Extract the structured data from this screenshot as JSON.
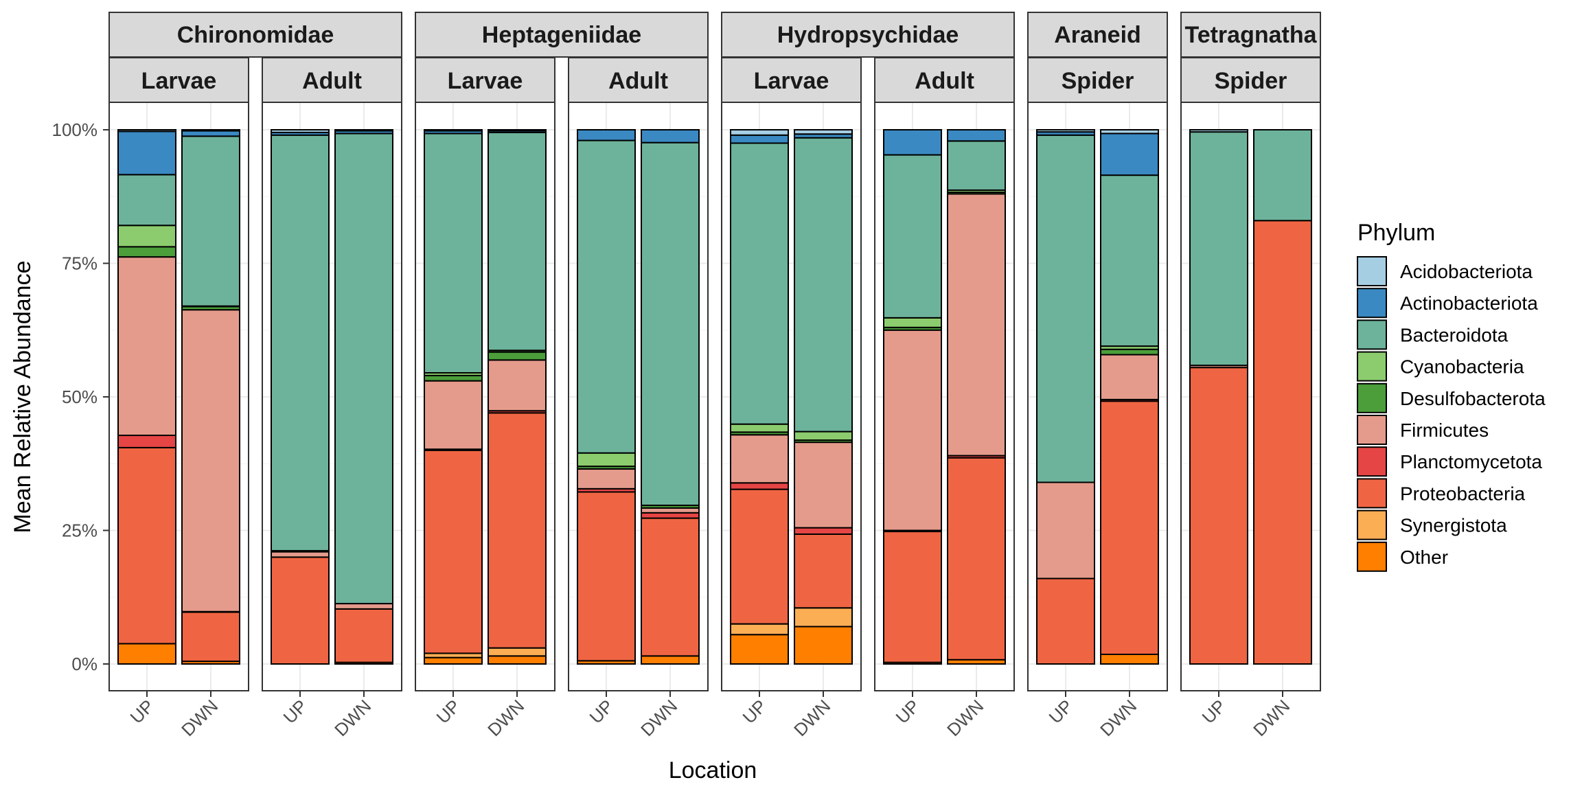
{
  "chart_data": {
    "type": "bar",
    "stacked": true,
    "xlabel": "Location",
    "ylabel": "Mean Relative Abundance",
    "ylim": [
      0,
      100
    ],
    "y_ticks": [
      "0%",
      "25%",
      "50%",
      "75%",
      "100%"
    ],
    "y_tick_values": [
      0,
      25,
      50,
      75,
      100
    ],
    "legend": {
      "title": "Phylum",
      "placement": "right",
      "entries": [
        "Acidobacteriota",
        "Actinobacteriota",
        "Bacteroidota",
        "Cyanobacteria",
        "Desulfobacterota",
        "Firmicutes",
        "Planctomycetota",
        "Proteobacteria",
        "Synergistota",
        "Other"
      ]
    },
    "colors": {
      "Acidobacteriota": "#a6cee3",
      "Actinobacteriota": "#3a89c2",
      "Bacteroidota": "#6db39b",
      "Cyanobacteria": "#8ccc6e",
      "Desulfobacterota": "#4b9e3a",
      "Firmicutes": "#e59b8c",
      "Planctomycetota": "#e64545",
      "Proteobacteria": "#ef6543",
      "Synergistota": "#fcae55",
      "Other": "#ff7f00"
    },
    "stack_order_bottom_to_top": [
      "Other",
      "Synergistota",
      "Proteobacteria",
      "Planctomycetota",
      "Firmicutes",
      "Desulfobacterota",
      "Cyanobacteria",
      "Bacteroidota",
      "Actinobacteriota",
      "Acidobacteriota"
    ],
    "groups": [
      {
        "taxon": "Chironomidae",
        "taxon_span": 2,
        "stages": [
          {
            "stage": "Larvae",
            "bars": [
              {
                "location": "UP",
                "values": {
                  "Other": 3.8,
                  "Synergistota": 0,
                  "Proteobacteria": 36.7,
                  "Planctomycetota": 2.3,
                  "Firmicutes": 33.4,
                  "Desulfobacterota": 1.9,
                  "Cyanobacteria": 4.0,
                  "Bacteroidota": 9.5,
                  "Actinobacteriota": 8.1,
                  "Acidobacteriota": 0.3
                }
              },
              {
                "location": "DWN",
                "values": {
                  "Other": 0.5,
                  "Synergistota": 0,
                  "Proteobacteria": 9.2,
                  "Planctomycetota": 0.1,
                  "Firmicutes": 56.5,
                  "Desulfobacterota": 0.6,
                  "Cyanobacteria": 0.1,
                  "Bacteroidota": 31.8,
                  "Actinobacteriota": 1.0,
                  "Acidobacteriota": 0.2
                }
              }
            ]
          },
          {
            "stage": "Adult",
            "bars": [
              {
                "location": "UP",
                "values": {
                  "Other": 0,
                  "Synergistota": 0,
                  "Proteobacteria": 20.0,
                  "Planctomycetota": 0,
                  "Firmicutes": 1.0,
                  "Desulfobacterota": 0.2,
                  "Cyanobacteria": 0,
                  "Bacteroidota": 77.8,
                  "Actinobacteriota": 0.5,
                  "Acidobacteriota": 0.5
                }
              },
              {
                "location": "DWN",
                "values": {
                  "Other": 0.3,
                  "Synergistota": 0,
                  "Proteobacteria": 10.0,
                  "Planctomycetota": 0,
                  "Firmicutes": 1.0,
                  "Desulfobacterota": 0,
                  "Cyanobacteria": 0,
                  "Bacteroidota": 88.0,
                  "Actinobacteriota": 0.5,
                  "Acidobacteriota": 0.2
                }
              }
            ]
          }
        ]
      },
      {
        "taxon": "Heptageniidae",
        "taxon_span": 2,
        "stages": [
          {
            "stage": "Larvae",
            "bars": [
              {
                "location": "UP",
                "values": {
                  "Other": 1.2,
                  "Synergistota": 0.8,
                  "Proteobacteria": 38.0,
                  "Planctomycetota": 0.2,
                  "Firmicutes": 12.8,
                  "Desulfobacterota": 1.0,
                  "Cyanobacteria": 0.5,
                  "Bacteroidota": 44.8,
                  "Actinobacteriota": 0.5,
                  "Acidobacteriota": 0.2
                }
              },
              {
                "location": "DWN",
                "values": {
                  "Other": 1.5,
                  "Synergistota": 1.5,
                  "Proteobacteria": 44.0,
                  "Planctomycetota": 0.4,
                  "Firmicutes": 9.5,
                  "Desulfobacterota": 1.5,
                  "Cyanobacteria": 0.3,
                  "Bacteroidota": 40.8,
                  "Actinobacteriota": 0.3,
                  "Acidobacteriota": 0.2
                }
              }
            ]
          },
          {
            "stage": "Adult",
            "bars": [
              {
                "location": "UP",
                "values": {
                  "Other": 0.6,
                  "Synergistota": 0,
                  "Proteobacteria": 31.6,
                  "Planctomycetota": 0.6,
                  "Firmicutes": 3.7,
                  "Desulfobacterota": 0.5,
                  "Cyanobacteria": 2.5,
                  "Bacteroidota": 58.5,
                  "Actinobacteriota": 2.0,
                  "Acidobacteriota": 0
                }
              },
              {
                "location": "DWN",
                "values": {
                  "Other": 1.5,
                  "Synergistota": 0,
                  "Proteobacteria": 25.8,
                  "Planctomycetota": 1.0,
                  "Firmicutes": 0.9,
                  "Desulfobacterota": 0.5,
                  "Cyanobacteria": 0,
                  "Bacteroidota": 67.9,
                  "Actinobacteriota": 2.4,
                  "Acidobacteriota": 0
                }
              }
            ]
          }
        ]
      },
      {
        "taxon": "Hydropsychidae",
        "taxon_span": 2,
        "stages": [
          {
            "stage": "Larvae",
            "bars": [
              {
                "location": "UP",
                "values": {
                  "Other": 5.5,
                  "Synergistota": 2.0,
                  "Proteobacteria": 25.2,
                  "Planctomycetota": 1.2,
                  "Firmicutes": 9.0,
                  "Desulfobacterota": 0.5,
                  "Cyanobacteria": 1.5,
                  "Bacteroidota": 52.6,
                  "Actinobacteriota": 1.5,
                  "Acidobacteriota": 1.0
                }
              },
              {
                "location": "DWN",
                "values": {
                  "Other": 7.0,
                  "Synergistota": 3.5,
                  "Proteobacteria": 13.8,
                  "Planctomycetota": 1.2,
                  "Firmicutes": 16.0,
                  "Desulfobacterota": 0.4,
                  "Cyanobacteria": 1.6,
                  "Bacteroidota": 55.0,
                  "Actinobacteriota": 0.7,
                  "Acidobacteriota": 0.8
                }
              }
            ]
          },
          {
            "stage": "Adult",
            "bars": [
              {
                "location": "UP",
                "values": {
                  "Other": 0.3,
                  "Synergistota": 0,
                  "Proteobacteria": 24.5,
                  "Planctomycetota": 0.2,
                  "Firmicutes": 37.5,
                  "Desulfobacterota": 0.5,
                  "Cyanobacteria": 1.8,
                  "Bacteroidota": 30.5,
                  "Actinobacteriota": 4.7,
                  "Acidobacteriota": 0
                }
              },
              {
                "location": "DWN",
                "values": {
                  "Other": 0.8,
                  "Synergistota": 0,
                  "Proteobacteria": 37.8,
                  "Planctomycetota": 0.4,
                  "Firmicutes": 49.0,
                  "Desulfobacterota": 0.3,
                  "Cyanobacteria": 0.4,
                  "Bacteroidota": 9.2,
                  "Actinobacteriota": 2.1,
                  "Acidobacteriota": 0
                }
              }
            ]
          }
        ]
      },
      {
        "taxon": "Araneid",
        "taxon_span": 1,
        "stages": [
          {
            "stage": "Spider",
            "bars": [
              {
                "location": "UP",
                "values": {
                  "Other": 0,
                  "Synergistota": 0,
                  "Proteobacteria": 16.0,
                  "Planctomycetota": 0,
                  "Firmicutes": 18.0,
                  "Desulfobacterota": 0,
                  "Cyanobacteria": 0,
                  "Bacteroidota": 65.0,
                  "Actinobacteriota": 0.6,
                  "Acidobacteriota": 0.4
                }
              },
              {
                "location": "DWN",
                "values": {
                  "Other": 1.8,
                  "Synergistota": 0,
                  "Proteobacteria": 47.4,
                  "Planctomycetota": 0.3,
                  "Firmicutes": 8.4,
                  "Desulfobacterota": 1.0,
                  "Cyanobacteria": 0.6,
                  "Bacteroidota": 32.0,
                  "Actinobacteriota": 7.8,
                  "Acidobacteriota": 0.7
                }
              }
            ]
          }
        ]
      },
      {
        "taxon": "Tetragnatha",
        "taxon_span": 1,
        "stages": [
          {
            "stage": "Spider",
            "bars": [
              {
                "location": "UP",
                "values": {
                  "Other": 0,
                  "Synergistota": 0,
                  "Proteobacteria": 55.5,
                  "Planctomycetota": 0,
                  "Firmicutes": 0.4,
                  "Desulfobacterota": 0,
                  "Cyanobacteria": 0,
                  "Bacteroidota": 43.7,
                  "Actinobacteriota": 0,
                  "Acidobacteriota": 0.4
                }
              },
              {
                "location": "DWN",
                "values": {
                  "Other": 0,
                  "Synergistota": 0,
                  "Proteobacteria": 83.0,
                  "Planctomycetota": 0,
                  "Firmicutes": 0,
                  "Desulfobacterota": 0,
                  "Cyanobacteria": 0,
                  "Bacteroidota": 17.0,
                  "Actinobacteriota": 0,
                  "Acidobacteriota": 0
                }
              }
            ]
          }
        ]
      }
    ]
  }
}
